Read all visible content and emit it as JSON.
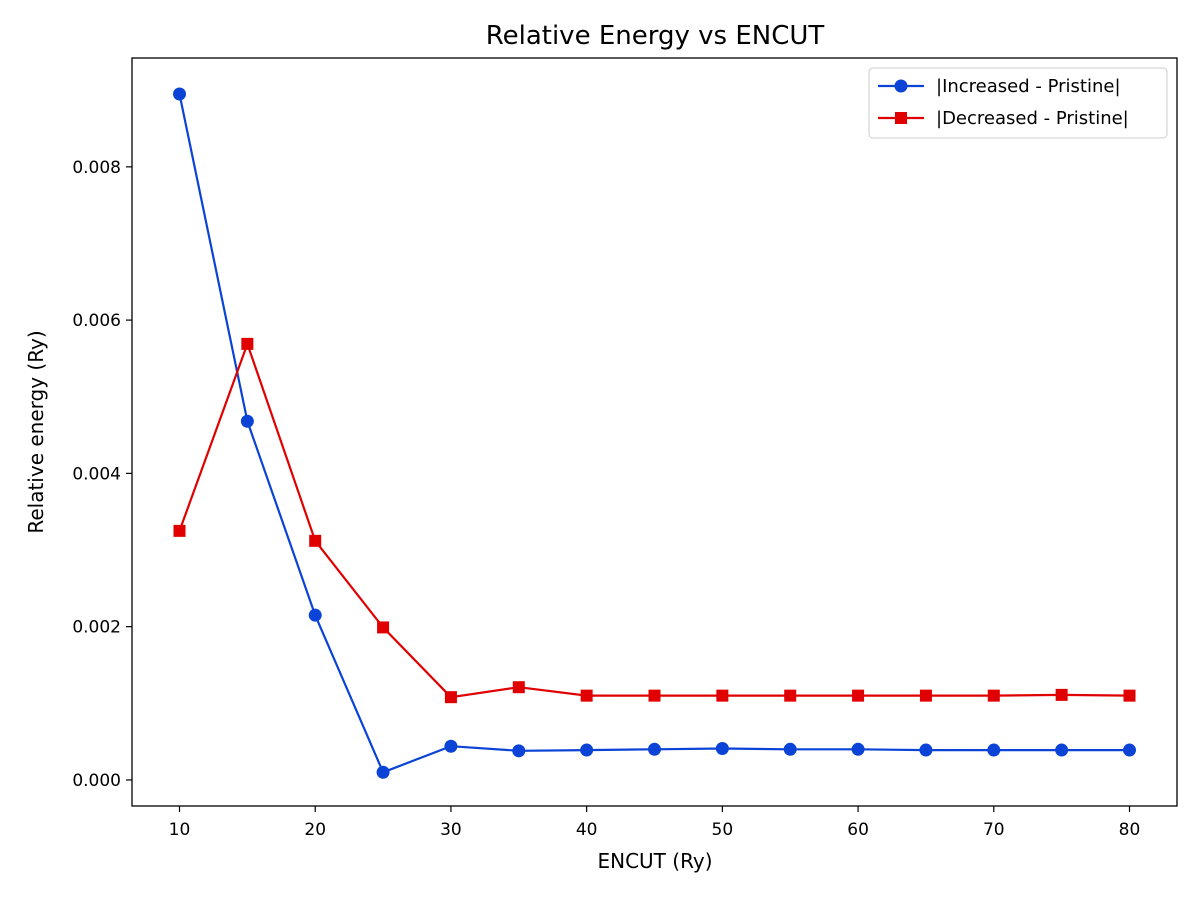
{
  "chart_data": {
    "type": "line",
    "title": "Relative Energy vs ENCUT",
    "xlabel": "ENCUT (Ry)",
    "ylabel": "Relative energy (Ry)",
    "xlim": [
      6.5,
      83.5
    ],
    "ylim": [
      -0.00034,
      0.00942
    ],
    "xticks": [
      10,
      20,
      30,
      40,
      50,
      60,
      70,
      80
    ],
    "xtick_labels": [
      "10",
      "20",
      "30",
      "40",
      "50",
      "60",
      "70",
      "80"
    ],
    "yticks": [
      0.0,
      0.002,
      0.004,
      0.006,
      0.008
    ],
    "ytick_labels": [
      "0.000",
      "0.002",
      "0.004",
      "0.006",
      "0.008"
    ],
    "grid": false,
    "legend_position": "top-right",
    "x": [
      10,
      15,
      20,
      25,
      30,
      35,
      40,
      45,
      50,
      55,
      60,
      65,
      70,
      75,
      80
    ],
    "series": [
      {
        "name": "|Increased - Pristine|",
        "color": "#0a43d6",
        "marker": "circle",
        "values": [
          0.00895,
          0.00468,
          0.00215,
          0.0001,
          0.00044,
          0.00038,
          0.00039,
          0.0004,
          0.00041,
          0.0004,
          0.0004,
          0.00039,
          0.00039,
          0.00039,
          0.00039
        ]
      },
      {
        "name": "|Decreased - Pristine|",
        "color": "#e00000",
        "marker": "square",
        "values": [
          0.00325,
          0.00569,
          0.00312,
          0.00199,
          0.00108,
          0.00121,
          0.0011,
          0.0011,
          0.0011,
          0.0011,
          0.0011,
          0.0011,
          0.0011,
          0.00111,
          0.0011
        ]
      }
    ]
  }
}
